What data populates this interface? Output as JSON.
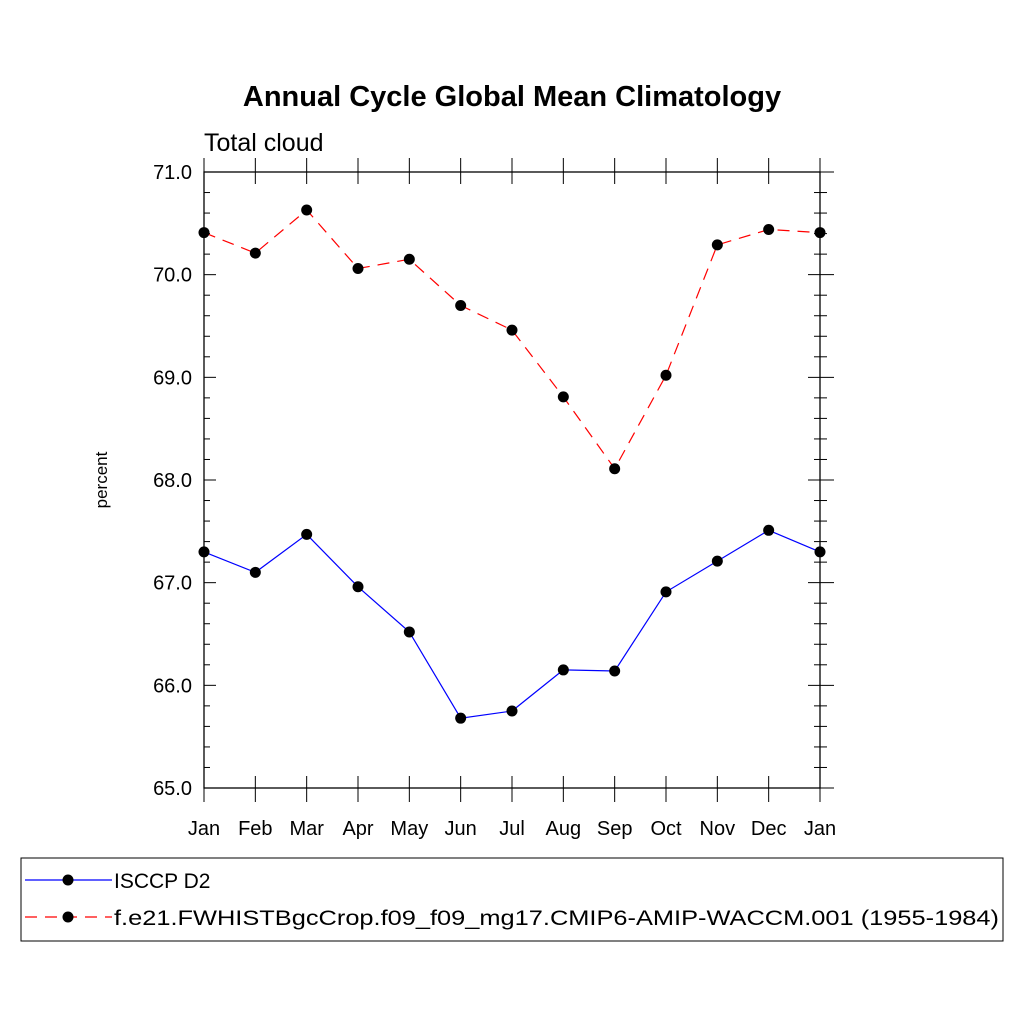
{
  "chart_data": {
    "type": "line",
    "title": "Annual Cycle Global Mean Climatology",
    "subtitle": "Total cloud",
    "xlabel": "",
    "ylabel": "percent",
    "categories": [
      "Jan",
      "Feb",
      "Mar",
      "Apr",
      "May",
      "Jun",
      "Jul",
      "Aug",
      "Sep",
      "Oct",
      "Nov",
      "Dec",
      "Jan"
    ],
    "ylim": [
      65.0,
      71.0
    ],
    "yticks": [
      "65.0",
      "66.0",
      "67.0",
      "68.0",
      "69.0",
      "70.0",
      "71.0"
    ],
    "grid": false,
    "legend_position": "bottom",
    "series": [
      {
        "name": "ISCCP D2",
        "color": "#0000ff",
        "dash": "solid",
        "marker": "circle",
        "values": [
          67.3,
          67.1,
          67.47,
          66.96,
          66.52,
          65.68,
          65.75,
          66.15,
          66.14,
          66.91,
          67.21,
          67.51,
          67.3
        ]
      },
      {
        "name": "f.e21.FWHISTBgcCrop.f09_f09_mg17.CMIP6-AMIP-WACCM.001 (1955-1984)",
        "color": "#ff0000",
        "dash": "dashed",
        "marker": "circle",
        "values": [
          70.41,
          70.21,
          70.63,
          70.06,
          70.15,
          69.7,
          69.46,
          68.81,
          68.11,
          69.02,
          70.29,
          70.44,
          70.41
        ]
      }
    ]
  }
}
